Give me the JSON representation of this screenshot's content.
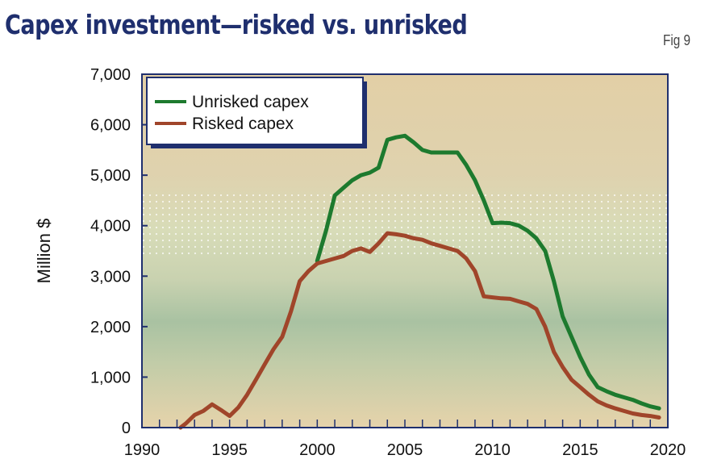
{
  "header": {
    "title": "Capex investment—risked vs. unrisked",
    "fig_label": "Fig 9"
  },
  "chart_data": {
    "type": "line",
    "title": "Capex investment—risked vs. unrisked",
    "xlabel": "",
    "ylabel": "Million $",
    "xlim": [
      1990,
      2020
    ],
    "ylim": [
      0,
      7000
    ],
    "x_ticks": [
      1990,
      1995,
      2000,
      2005,
      2010,
      2015,
      2020
    ],
    "y_ticks": [
      0,
      1000,
      2000,
      3000,
      4000,
      5000,
      6000,
      7000
    ],
    "x_tick_labels": [
      "1990",
      "1995",
      "2000",
      "2005",
      "2010",
      "2015",
      "2020"
    ],
    "y_tick_labels": [
      "0",
      "1,000",
      "2,000",
      "3,000",
      "4,000",
      "5,000",
      "6,000",
      "7,000"
    ],
    "grid": false,
    "legend_position": "top-left",
    "series": [
      {
        "name": "Unrisked capex",
        "color": "#1d7a2e",
        "points": [
          [
            2000,
            3300
          ],
          [
            2000.5,
            3900
          ],
          [
            2001,
            4600
          ],
          [
            2001.5,
            4750
          ],
          [
            2002,
            4900
          ],
          [
            2002.5,
            5000
          ],
          [
            2003,
            5050
          ],
          [
            2003.5,
            5150
          ],
          [
            2004,
            5700
          ],
          [
            2004.5,
            5750
          ],
          [
            2005,
            5780
          ],
          [
            2005.5,
            5650
          ],
          [
            2006,
            5500
          ],
          [
            2006.5,
            5450
          ],
          [
            2007,
            5450
          ],
          [
            2007.5,
            5450
          ],
          [
            2008,
            5450
          ],
          [
            2008.5,
            5200
          ],
          [
            2009,
            4900
          ],
          [
            2009.5,
            4500
          ],
          [
            2010,
            4050
          ],
          [
            2010.5,
            4060
          ],
          [
            2011,
            4050
          ],
          [
            2011.5,
            4000
          ],
          [
            2012,
            3900
          ],
          [
            2012.5,
            3750
          ],
          [
            2013,
            3500
          ],
          [
            2013.5,
            2900
          ],
          [
            2014,
            2200
          ],
          [
            2014.5,
            1800
          ],
          [
            2015,
            1400
          ],
          [
            2015.5,
            1050
          ],
          [
            2016,
            800
          ],
          [
            2016.5,
            720
          ],
          [
            2017,
            650
          ],
          [
            2017.5,
            600
          ],
          [
            2018,
            550
          ],
          [
            2018.5,
            480
          ],
          [
            2019,
            420
          ],
          [
            2019.5,
            380
          ]
        ]
      },
      {
        "name": "Risked capex",
        "color": "#a0452a",
        "points": [
          [
            1992.2,
            0
          ],
          [
            1992.5,
            80
          ],
          [
            1993,
            250
          ],
          [
            1993.5,
            330
          ],
          [
            1994,
            460
          ],
          [
            1994.5,
            350
          ],
          [
            1995,
            230
          ],
          [
            1995.5,
            400
          ],
          [
            1996,
            650
          ],
          [
            1996.5,
            950
          ],
          [
            1997,
            1250
          ],
          [
            1997.5,
            1550
          ],
          [
            1998,
            1800
          ],
          [
            1998.5,
            2300
          ],
          [
            1999,
            2900
          ],
          [
            1999.5,
            3100
          ],
          [
            2000,
            3250
          ],
          [
            2000.5,
            3300
          ],
          [
            2001,
            3350
          ],
          [
            2001.5,
            3400
          ],
          [
            2002,
            3500
          ],
          [
            2002.5,
            3550
          ],
          [
            2003,
            3480
          ],
          [
            2003.5,
            3650
          ],
          [
            2004,
            3850
          ],
          [
            2004.5,
            3830
          ],
          [
            2005,
            3800
          ],
          [
            2005.5,
            3750
          ],
          [
            2006,
            3720
          ],
          [
            2006.5,
            3650
          ],
          [
            2007,
            3600
          ],
          [
            2007.5,
            3550
          ],
          [
            2008,
            3500
          ],
          [
            2008.5,
            3350
          ],
          [
            2009,
            3100
          ],
          [
            2009.5,
            2600
          ],
          [
            2010,
            2580
          ],
          [
            2010.5,
            2560
          ],
          [
            2011,
            2550
          ],
          [
            2011.5,
            2500
          ],
          [
            2012,
            2450
          ],
          [
            2012.5,
            2350
          ],
          [
            2013,
            2000
          ],
          [
            2013.5,
            1500
          ],
          [
            2014,
            1200
          ],
          [
            2014.5,
            950
          ],
          [
            2015,
            800
          ],
          [
            2015.5,
            650
          ],
          [
            2016,
            520
          ],
          [
            2016.5,
            440
          ],
          [
            2017,
            380
          ],
          [
            2017.5,
            330
          ],
          [
            2018,
            280
          ],
          [
            2018.5,
            250
          ],
          [
            2019,
            230
          ],
          [
            2019.5,
            200
          ]
        ]
      }
    ]
  },
  "colors": {
    "title": "#1f2f6e",
    "frame": "#1f2f6e",
    "plot_bg_top": "#e2cfa6",
    "plot_bg_mid": "#d8dcb8",
    "plot_bg_band": "#a9c2a2",
    "plot_bg_bottom": "#e6d3ab"
  }
}
